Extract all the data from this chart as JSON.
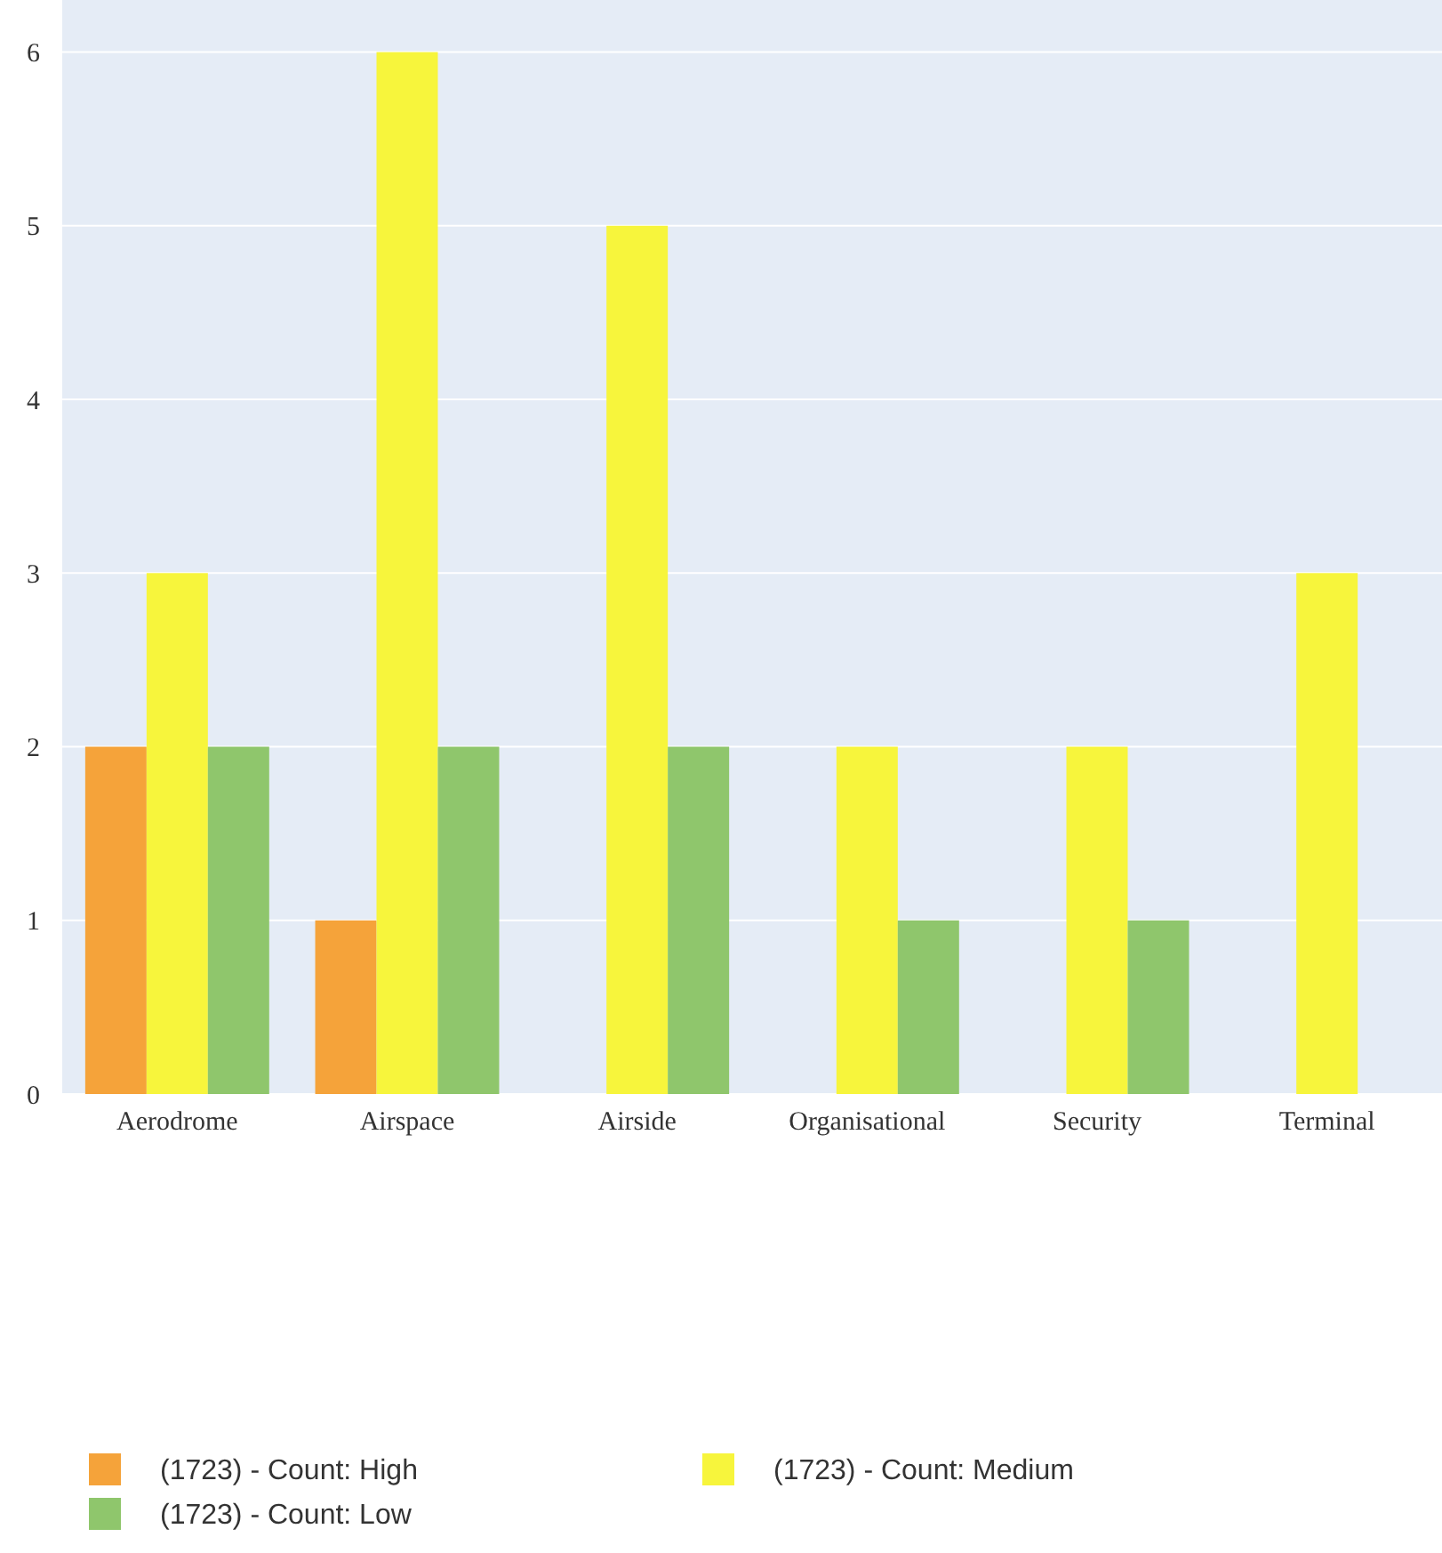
{
  "chart_data": {
    "type": "bar",
    "categories": [
      "Aerodrome",
      "Airspace",
      "Airside",
      "Organisational",
      "Security",
      "Terminal"
    ],
    "series": [
      {
        "name": "(1723) - Count: High",
        "color": "#f5a33a",
        "values": [
          2,
          1,
          null,
          null,
          null,
          null
        ]
      },
      {
        "name": "(1723) - Count: Medium",
        "color": "#f7f53c",
        "values": [
          3,
          6,
          5,
          2,
          2,
          3
        ]
      },
      {
        "name": "(1723) - Count: Low",
        "color": "#8fc66c",
        "values": [
          2,
          2,
          2,
          1,
          1,
          null
        ]
      }
    ],
    "ylim": [
      0,
      6.3
    ],
    "yticks": [
      0,
      1,
      2,
      3,
      4,
      5,
      6
    ],
    "grid": "y",
    "legend": "bottom left"
  }
}
